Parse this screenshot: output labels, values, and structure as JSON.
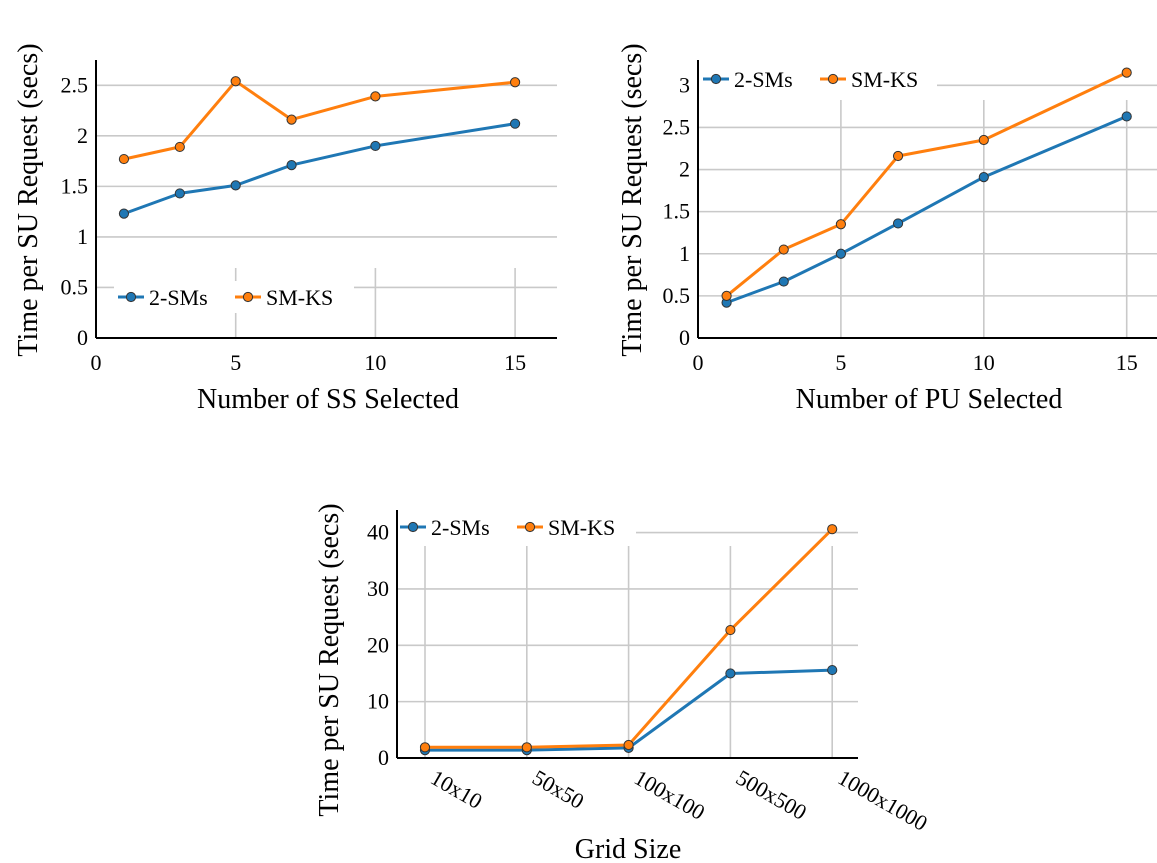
{
  "chart_data": [
    {
      "type": "line",
      "xlabel": "Number of SS Selected",
      "ylabel": "Time per SU Request (secs)",
      "xlim": [
        0,
        16.5
      ],
      "ylim": [
        0,
        2.75
      ],
      "xticks": [
        0,
        5,
        10,
        15
      ],
      "xtick_labels": [
        "0",
        "5",
        "10",
        "15"
      ],
      "yticks": [
        0,
        0.5,
        1,
        1.5,
        2,
        2.5
      ],
      "ytick_labels": [
        "0",
        "0.5",
        "1",
        "1.5",
        "2",
        "2.5"
      ],
      "x": [
        1,
        3,
        5,
        7,
        10,
        15
      ],
      "series": [
        {
          "name": "2-SMs",
          "color": "#1f77b4",
          "values": [
            1.23,
            1.43,
            1.51,
            1.71,
            1.9,
            2.12
          ]
        },
        {
          "name": "SM-KS",
          "color": "#ff7f0e",
          "values": [
            1.77,
            1.89,
            2.54,
            2.16,
            2.39,
            2.53
          ]
        }
      ],
      "grid": true,
      "legend": "lower-left"
    },
    {
      "type": "line",
      "xlabel": "Number of PU Selected",
      "ylabel": "Time per SU Request (secs)",
      "xlim": [
        0,
        16.2
      ],
      "ylim": [
        0,
        3.3
      ],
      "xticks": [
        0,
        5,
        10,
        15
      ],
      "xtick_labels": [
        "0",
        "5",
        "10",
        "15"
      ],
      "yticks": [
        0,
        0.5,
        1,
        1.5,
        2,
        2.5,
        3
      ],
      "ytick_labels": [
        "0",
        "0.5",
        "1",
        "1.5",
        "2",
        "2.5",
        "3"
      ],
      "x": [
        1,
        3,
        5,
        7,
        10,
        15
      ],
      "series": [
        {
          "name": "2-SMs",
          "color": "#1f77b4",
          "values": [
            0.42,
            0.67,
            1.0,
            1.36,
            1.91,
            2.63
          ]
        },
        {
          "name": "SM-KS",
          "color": "#ff7f0e",
          "values": [
            0.5,
            1.05,
            1.35,
            2.16,
            2.35,
            3.15
          ]
        }
      ],
      "grid": true,
      "legend": "top-left"
    },
    {
      "type": "line",
      "xlabel": "Grid Size",
      "ylabel": "Time per SU Request (secs)",
      "categories": [
        "10x10",
        "50x50",
        "100x100",
        "500x500",
        "1000x1000"
      ],
      "ylim": [
        0,
        44
      ],
      "yticks": [
        0,
        10,
        20,
        30,
        40
      ],
      "ytick_labels": [
        "0",
        "10",
        "20",
        "30",
        "40"
      ],
      "series": [
        {
          "name": "2-SMs",
          "color": "#1f77b4",
          "values": [
            1.4,
            1.4,
            1.8,
            15.0,
            15.6
          ]
        },
        {
          "name": "SM-KS",
          "color": "#ff7f0e",
          "values": [
            1.9,
            1.9,
            2.3,
            22.7,
            40.6
          ]
        }
      ],
      "grid": true,
      "legend": "top-left"
    }
  ]
}
